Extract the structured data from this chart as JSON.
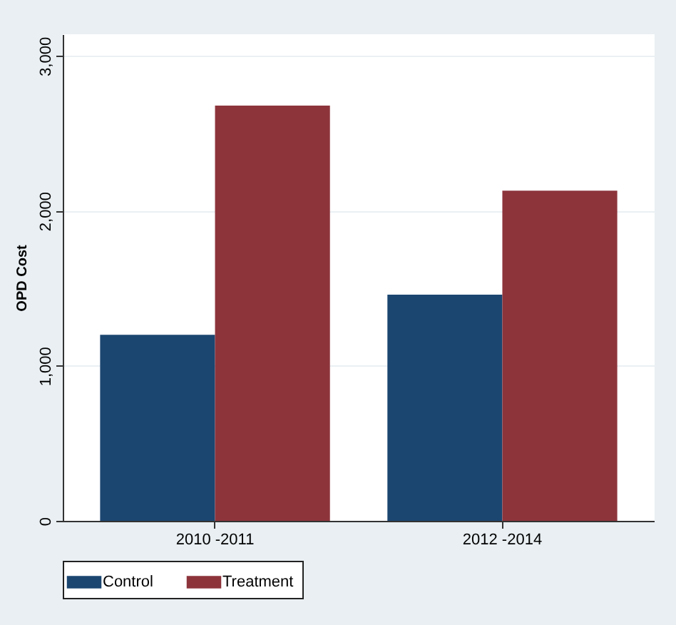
{
  "chart_data": {
    "type": "bar",
    "ylabel": "OPD Cost",
    "categories": [
      "2010 -2011",
      "2012 -2014"
    ],
    "series": [
      {
        "name": "Control",
        "color": "#1b4670",
        "values": [
          1200,
          1460
        ]
      },
      {
        "name": "Treatment",
        "color": "#8d343b",
        "values": [
          2680,
          2130
        ]
      }
    ],
    "ylim": [
      0,
      3140
    ],
    "yticks": [
      {
        "value": 0,
        "label": "0"
      },
      {
        "value": 1000,
        "label": "1,000"
      },
      {
        "value": 2000,
        "label": "2,000"
      },
      {
        "value": 3000,
        "label": "3,000"
      }
    ],
    "grid": "y",
    "legend": "bottom"
  }
}
